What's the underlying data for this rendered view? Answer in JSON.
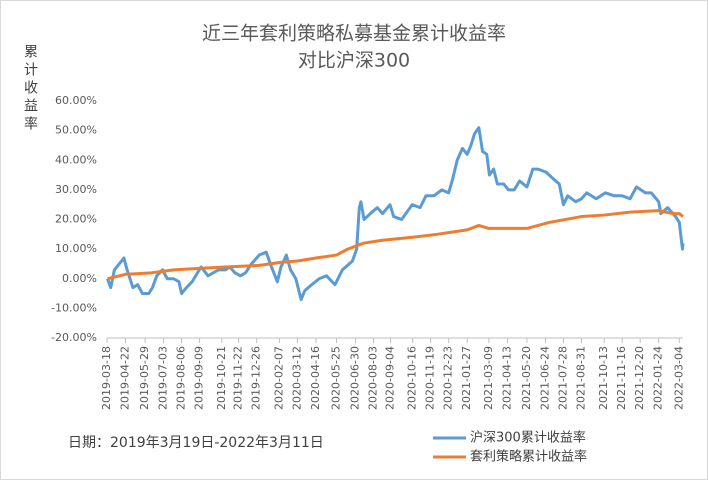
{
  "chart_data": {
    "type": "line",
    "title": "近三年套利策略私募基金累计收益率",
    "subtitle": "对比沪深300",
    "ylabel": "累计收益率",
    "annotation": "日期：2019年3月19日-2022年3月11日",
    "ylim": [
      -20,
      60
    ],
    "yticks": [
      {
        "value": -20,
        "label": "-20.00%"
      },
      {
        "value": -10,
        "label": "-10.00%"
      },
      {
        "value": 0,
        "label": "0.00%"
      },
      {
        "value": 10,
        "label": "10.00%"
      },
      {
        "value": 20,
        "label": "20.00%"
      },
      {
        "value": 30,
        "label": "30.00%"
      },
      {
        "value": 40,
        "label": "40.00%"
      },
      {
        "value": 50,
        "label": "50.00%"
      },
      {
        "value": 60,
        "label": "60.00%"
      }
    ],
    "xlim": [
      "2019-03-18",
      "2022-03-11"
    ],
    "xticks": [
      "2019-03-18",
      "2019-04-22",
      "2019-05-29",
      "2019-07-03",
      "2019-08-06",
      "2019-09-09",
      "2019-10-21",
      "2019-11-22",
      "2019-12-26",
      "2020-02-07",
      "2020-03-12",
      "2020-04-16",
      "2020-05-25",
      "2020-06-30",
      "2020-08-03",
      "2020-09-04",
      "2020-10-16",
      "2020-11-19",
      "2020-12-23",
      "2021-01-27",
      "2021-03-09",
      "2021-04-13",
      "2021-05-20",
      "2021-06-24",
      "2021-07-28",
      "2021-08-31",
      "2021-10-13",
      "2021-11-16",
      "2021-12-20",
      "2022-01-24",
      "2022-03-04"
    ],
    "grid": false,
    "legend": "bottom-right",
    "series": [
      {
        "name": "沪深300累计收益率",
        "color": "#5b9bd5",
        "x": [
          "2019-03-19",
          "2019-03-25",
          "2019-04-01",
          "2019-04-10",
          "2019-04-19",
          "2019-04-25",
          "2019-05-06",
          "2019-05-15",
          "2019-05-24",
          "2019-06-05",
          "2019-06-12",
          "2019-06-20",
          "2019-07-01",
          "2019-07-10",
          "2019-07-22",
          "2019-08-01",
          "2019-08-06",
          "2019-08-15",
          "2019-08-26",
          "2019-09-05",
          "2019-09-12",
          "2019-09-25",
          "2019-10-15",
          "2019-10-28",
          "2019-11-05",
          "2019-11-15",
          "2019-11-25",
          "2019-12-05",
          "2019-12-16",
          "2019-12-31",
          "2020-01-13",
          "2020-01-23",
          "2020-02-03",
          "2020-02-10",
          "2020-02-20",
          "2020-02-28",
          "2020-03-09",
          "2020-03-19",
          "2020-03-26",
          "2020-04-08",
          "2020-04-22",
          "2020-05-06",
          "2020-05-22",
          "2020-06-05",
          "2020-06-24",
          "2020-07-02",
          "2020-07-07",
          "2020-07-10",
          "2020-07-16",
          "2020-07-28",
          "2020-08-10",
          "2020-08-20",
          "2020-09-03",
          "2020-09-10",
          "2020-09-25",
          "2020-10-15",
          "2020-10-30",
          "2020-11-10",
          "2020-11-25",
          "2020-12-10",
          "2020-12-23",
          "2020-12-31",
          "2021-01-08",
          "2021-01-18",
          "2021-01-27",
          "2021-02-03",
          "2021-02-10",
          "2021-02-18",
          "2021-02-25",
          "2021-03-05",
          "2021-03-10",
          "2021-03-18",
          "2021-03-25",
          "2021-04-06",
          "2021-04-15",
          "2021-04-26",
          "2021-05-06",
          "2021-05-20",
          "2021-05-31",
          "2021-06-10",
          "2021-06-25",
          "2021-07-07",
          "2021-07-20",
          "2021-07-28",
          "2021-08-05",
          "2021-08-20",
          "2021-08-31",
          "2021-09-10",
          "2021-09-28",
          "2021-10-15",
          "2021-11-01",
          "2021-11-16",
          "2021-12-01",
          "2021-12-13",
          "2021-12-30",
          "2022-01-10",
          "2022-01-24",
          "2022-01-28",
          "2022-02-10",
          "2022-02-25",
          "2022-03-04",
          "2022-03-08",
          "2022-03-10",
          "2022-03-11"
        ],
        "values": [
          0,
          -3,
          3,
          5,
          7,
          3,
          -3,
          -2,
          -5,
          -5,
          -3,
          1,
          3,
          0,
          0,
          -1,
          -5,
          -3,
          -1,
          2,
          4,
          1,
          3,
          3,
          4,
          2,
          1,
          2,
          5,
          8,
          9,
          4,
          -1,
          4,
          8,
          3,
          0,
          -7,
          -4,
          -2,
          0,
          1,
          -2,
          3,
          6,
          10,
          24,
          26,
          20,
          22,
          24,
          22,
          25,
          21,
          20,
          25,
          24,
          28,
          28,
          30,
          29,
          34,
          40,
          44,
          42,
          45,
          49,
          51,
          43,
          42,
          35,
          37,
          32,
          32,
          30,
          30,
          33,
          31,
          37,
          37,
          36,
          34,
          32,
          25,
          28,
          26,
          27,
          29,
          27,
          29,
          28,
          28,
          27,
          31,
          29,
          29,
          26,
          22,
          24,
          21,
          19,
          13,
          10,
          12
        ]
      },
      {
        "name": "套利策略累计收益率",
        "color": "#ed7d31",
        "x": [
          "2019-03-19",
          "2019-04-22",
          "2019-06-10",
          "2019-07-22",
          "2019-09-09",
          "2019-11-01",
          "2019-12-31",
          "2020-02-07",
          "2020-03-12",
          "2020-04-16",
          "2020-05-25",
          "2020-06-15",
          "2020-07-15",
          "2020-08-20",
          "2020-10-16",
          "2020-12-01",
          "2021-01-27",
          "2021-02-18",
          "2021-03-09",
          "2021-05-20",
          "2021-07-01",
          "2021-08-31",
          "2021-10-13",
          "2021-12-01",
          "2022-01-24",
          "2022-02-20",
          "2022-03-04",
          "2022-03-11"
        ],
        "values": [
          0,
          1.5,
          2,
          3,
          3.5,
          4,
          4.5,
          5.5,
          6,
          7,
          8,
          10,
          12,
          13,
          14,
          15,
          16.5,
          18,
          17,
          17,
          19,
          21,
          21.5,
          22.5,
          23,
          22,
          22,
          21
        ]
      }
    ]
  }
}
